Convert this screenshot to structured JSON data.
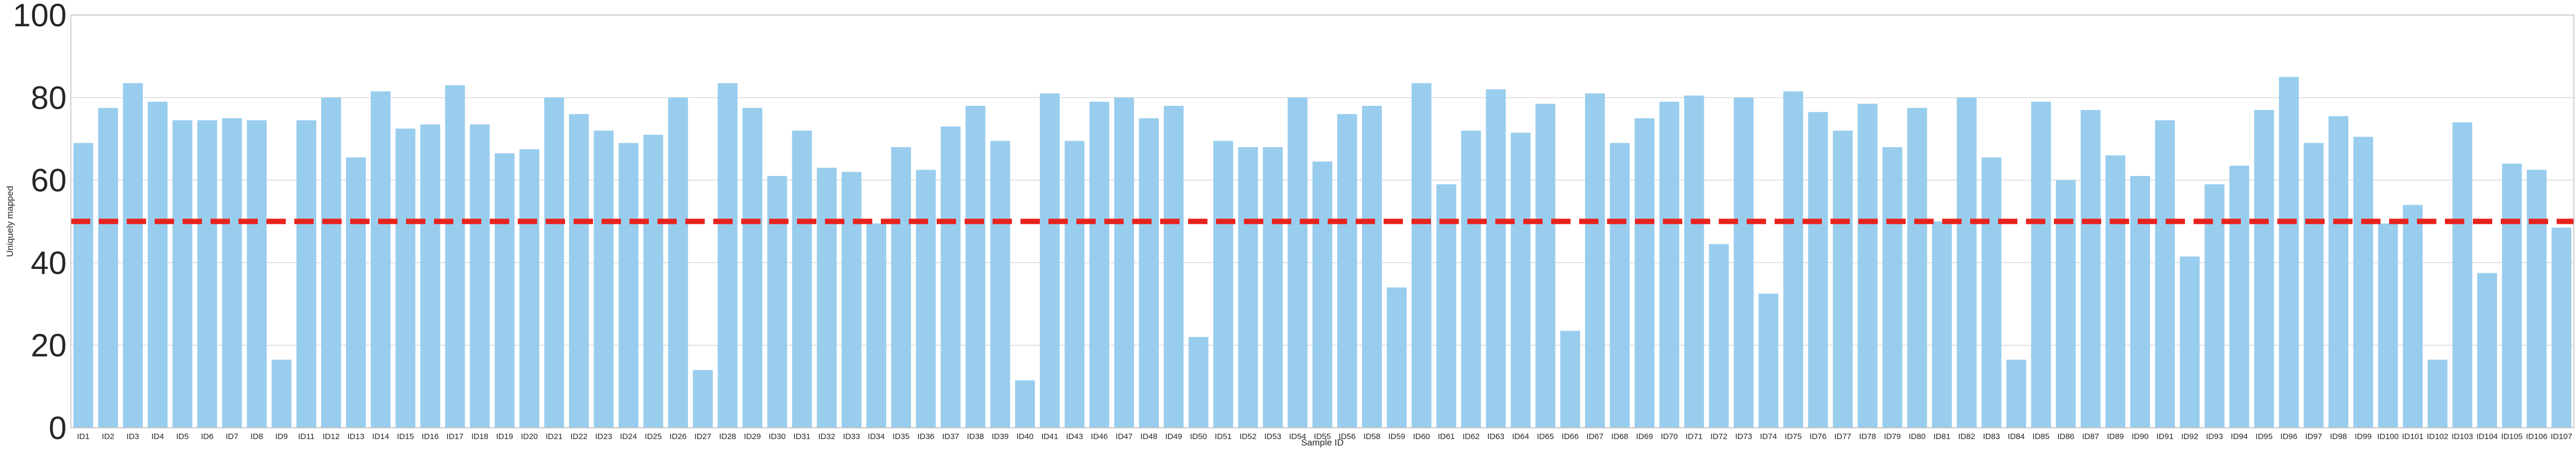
{
  "chart_data": {
    "type": "bar",
    "xlabel": "Sample ID",
    "ylabel": "Uniquely mapped",
    "ylim": [
      0,
      100
    ],
    "yticks": [
      "0",
      "20",
      "40",
      "60",
      "80",
      "100"
    ],
    "grid": true,
    "bar_color": "#99cdee",
    "threshold": {
      "value": 50,
      "color": "#e8221c",
      "style": "dashed"
    },
    "categories": [
      "ID1",
      "ID2",
      "ID3",
      "ID4",
      "ID5",
      "ID6",
      "ID7",
      "ID8",
      "ID9",
      "ID11",
      "ID12",
      "ID13",
      "ID14",
      "ID15",
      "ID16",
      "ID17",
      "ID18",
      "ID19",
      "ID20",
      "ID21",
      "ID22",
      "ID23",
      "ID24",
      "ID25",
      "ID26",
      "ID27",
      "ID28",
      "ID29",
      "ID30",
      "ID31",
      "ID32",
      "ID33",
      "ID34",
      "ID35",
      "ID36",
      "ID37",
      "ID38",
      "ID39",
      "ID40",
      "ID41",
      "ID43",
      "ID46",
      "ID47",
      "ID48",
      "ID49",
      "ID50",
      "ID51",
      "ID52",
      "ID53",
      "ID54",
      "ID55",
      "ID56",
      "ID58",
      "ID59",
      "ID60",
      "ID61",
      "ID62",
      "ID63",
      "ID64",
      "ID65",
      "ID66",
      "ID67",
      "ID68",
      "ID69",
      "ID70",
      "ID71",
      "ID72",
      "ID73",
      "ID74",
      "ID75",
      "ID76",
      "ID77",
      "ID78",
      "ID79",
      "ID80",
      "ID81",
      "ID82",
      "ID83",
      "ID84",
      "ID85",
      "ID86",
      "ID87",
      "ID89",
      "ID90",
      "ID91",
      "ID92",
      "ID93",
      "ID94",
      "ID95",
      "ID96",
      "ID97",
      "ID98",
      "ID99",
      "ID100",
      "ID101",
      "ID102",
      "ID103",
      "ID104",
      "ID105",
      "ID106",
      "ID107"
    ],
    "values": [
      69,
      77.5,
      83.5,
      79,
      74.5,
      74.5,
      75,
      74.5,
      16.5,
      74.5,
      80,
      65.5,
      81.5,
      72.5,
      73.5,
      83,
      73.5,
      66.5,
      67.5,
      80,
      76,
      72,
      69,
      71,
      80,
      14,
      83.5,
      77.5,
      61,
      72,
      63,
      62,
      49.5,
      68,
      62.5,
      73,
      78,
      69.5,
      11.5,
      81,
      69.5,
      79,
      80,
      75,
      78,
      22,
      69.5,
      68,
      68,
      80,
      64.5,
      76,
      78,
      34,
      83.5,
      59,
      72,
      82,
      71.5,
      78.5,
      23.5,
      81,
      69,
      75,
      79,
      80.5,
      44.5,
      80,
      32.5,
      81.5,
      76.5,
      72,
      78.5,
      68,
      77.5,
      50,
      80,
      65.5,
      16.5,
      79,
      60,
      77,
      66,
      61,
      74.5,
      41.5,
      59,
      63.5,
      77,
      85,
      69,
      75.5,
      70.5,
      49.5,
      54,
      16.5,
      74,
      37.5,
      64,
      62.5,
      48.5
    ]
  }
}
